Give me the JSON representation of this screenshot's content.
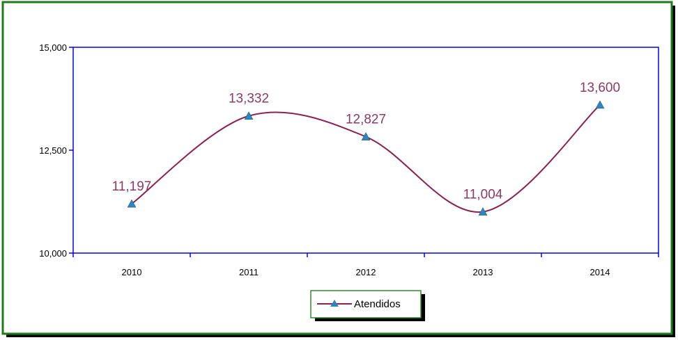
{
  "chart_data": {
    "type": "line",
    "title": "",
    "xlabel": "",
    "ylabel": "",
    "categories": [
      "2010",
      "2011",
      "2012",
      "2013",
      "2014"
    ],
    "series": [
      {
        "name": "Atendidos",
        "values": [
          11197,
          13332,
          12827,
          11004,
          13600
        ],
        "data_labels": [
          "11,197",
          "13,332",
          "12,827",
          "11,004",
          "13,600"
        ]
      }
    ],
    "ylim": [
      10000,
      15000
    ],
    "y_ticks": [
      10000,
      12500,
      15000
    ],
    "y_tick_labels": [
      "10,000",
      "12,500",
      "15,000"
    ],
    "smooth": true,
    "marker": "triangle",
    "grid": false,
    "legend_position": "bottom",
    "colors": {
      "line": "#8B2252",
      "marker": "#2E86C1",
      "data_label": "#8B3A62",
      "axis": "#0000FF",
      "frame": "#1E7B1E",
      "legend_border": "#2E8B2E"
    }
  }
}
